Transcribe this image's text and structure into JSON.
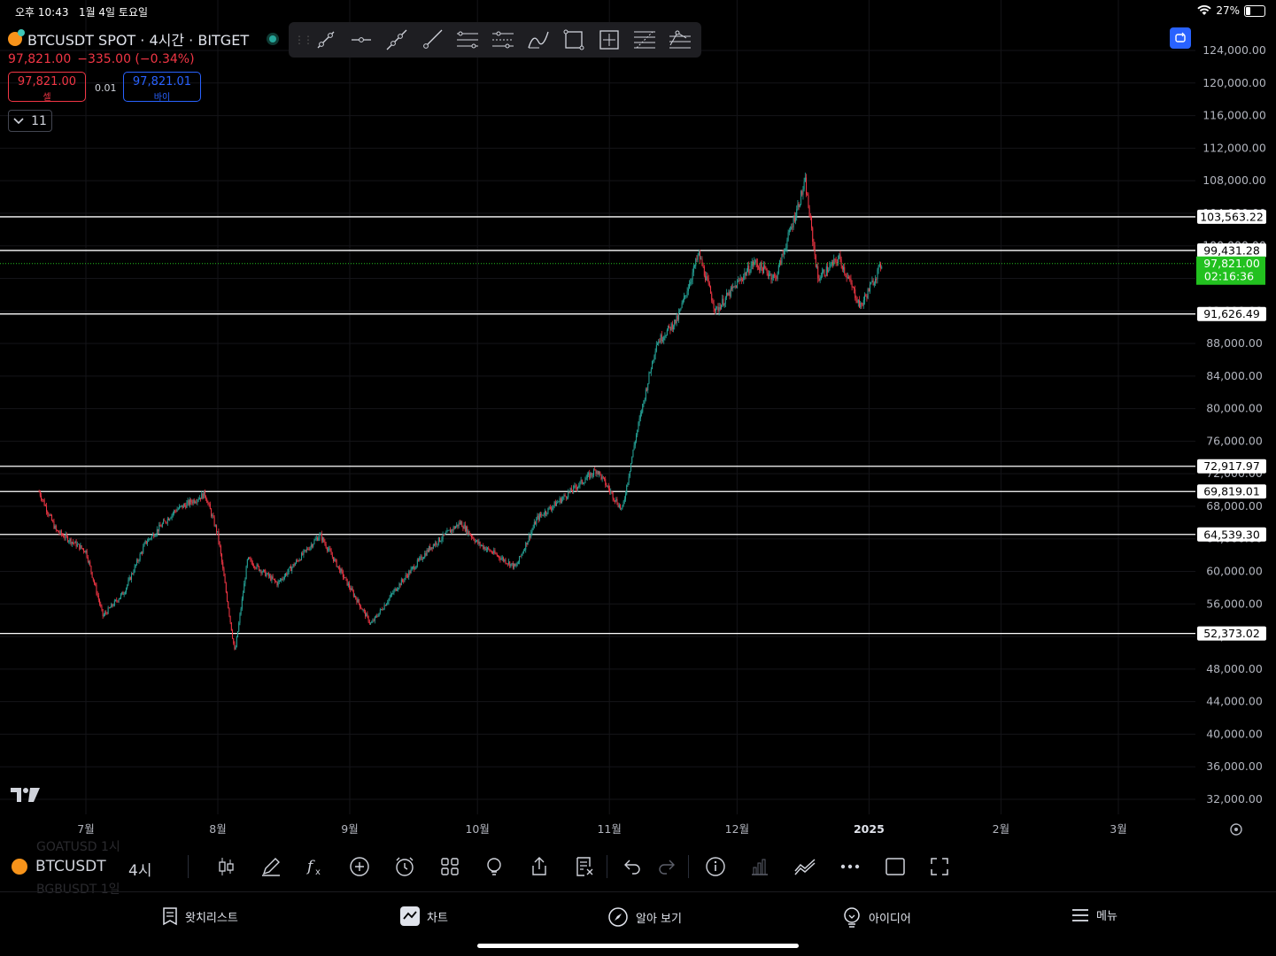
{
  "status_bar": {
    "time": "오후 10:43",
    "date": "1월 4일 토요일",
    "battery": "27%",
    "battery_level": 0.27
  },
  "header": {
    "symbol_title": "BTCUSDT SPOT · 4시간 · BITGET",
    "last_price": "97,821.00",
    "change": "−335.00 (−0.34%)",
    "sell_price": "97,821.00",
    "sell_label": "셀",
    "buy_price": "97,821.01",
    "buy_label": "바이",
    "spread": "0.01",
    "collapse_count": "11"
  },
  "drawing_tools": [
    "trend-line-icon",
    "horizontal-ray-icon",
    "extended-line-icon",
    "ray-icon",
    "parallel-channel-icon",
    "regression-channel-icon",
    "path-icon",
    "rectangle-icon",
    "price-range-icon",
    "fib-retracement-icon",
    "fib-extension-icon"
  ],
  "colors": {
    "up": "#26a69a",
    "down": "#f23645",
    "accent": "#2962ff",
    "last_price_bg": "#22c11f"
  },
  "chart_data": {
    "type": "candlestick",
    "symbol": "BTCUSDT",
    "timeframe": "4시간",
    "x_tick_labels": [
      "7월",
      "8월",
      "9월",
      "10월",
      "11월",
      "12월",
      "2025",
      "2월",
      "3월"
    ],
    "y_tick_labels": [
      "124,000.00",
      "120,000.00",
      "116,000.00",
      "112,000.00",
      "108,000.00",
      "104,000.00",
      "100,000.00",
      "96,000.00",
      "92,000.00",
      "88,000.00",
      "84,000.00",
      "80,000.00",
      "76,000.00",
      "72,000.00",
      "68,000.00",
      "64,000.00",
      "60,000.00",
      "56,000.00",
      "52,000.00",
      "48,000.00",
      "44,000.00",
      "40,000.00",
      "36,000.00",
      "32,000.00"
    ],
    "ylim": [
      30000,
      126000
    ],
    "horizontal_lines": [
      103563.22,
      99431.28,
      91626.49,
      72917.97,
      69819.01,
      64539.3,
      52373.02
    ],
    "horizontal_line_labels": [
      "103,563.22",
      "99,431.28",
      "91,626.49",
      "72,917.97",
      "69,819.01",
      "64,539.30",
      "52,373.02"
    ],
    "last_price": 97821.0,
    "last_price_label": "97,821.00",
    "countdown": "02:16:36",
    "price_path_approx": [
      [
        "2024-06-20",
        69800
      ],
      [
        "2024-06-24",
        65000
      ],
      [
        "2024-07-01",
        62500
      ],
      [
        "2024-07-05",
        54500
      ],
      [
        "2024-07-10",
        57500
      ],
      [
        "2024-07-15",
        63500
      ],
      [
        "2024-07-22",
        67500
      ],
      [
        "2024-07-29",
        69500
      ],
      [
        "2024-08-01",
        64500
      ],
      [
        "2024-08-05",
        50000
      ],
      [
        "2024-08-08",
        61500
      ],
      [
        "2024-08-15",
        58500
      ],
      [
        "2024-08-25",
        64500
      ],
      [
        "2024-09-01",
        58000
      ],
      [
        "2024-09-06",
        53500
      ],
      [
        "2024-09-12",
        58000
      ],
      [
        "2024-09-20",
        63000
      ],
      [
        "2024-09-27",
        66000
      ],
      [
        "2024-10-01",
        63500
      ],
      [
        "2024-10-10",
        60500
      ],
      [
        "2024-10-15",
        66500
      ],
      [
        "2024-10-21",
        69000
      ],
      [
        "2024-10-29",
        72500
      ],
      [
        "2024-11-04",
        67500
      ],
      [
        "2024-11-07",
        76000
      ],
      [
        "2024-11-12",
        88000
      ],
      [
        "2024-11-17",
        91000
      ],
      [
        "2024-11-22",
        99000
      ],
      [
        "2024-11-26",
        92000
      ],
      [
        "2024-12-05",
        98000
      ],
      [
        "2024-12-10",
        96000
      ],
      [
        "2024-12-17",
        107800
      ],
      [
        "2024-12-20",
        96000
      ],
      [
        "2024-12-25",
        98500
      ],
      [
        "2024-12-30",
        92500
      ],
      [
        "2025-01-04",
        97821
      ]
    ]
  },
  "bottom_toolbar": {
    "symbol": "BTCUSDT",
    "timeframe": "4시",
    "ghost_above": "GOATUSD  1시",
    "ghost_below": "BGBUSDT  1일"
  },
  "tabs": [
    {
      "label": "왓치리스트",
      "icon": "watchlist-icon"
    },
    {
      "label": "차트",
      "icon": "chart-icon"
    },
    {
      "label": "알아 보기",
      "icon": "compass-icon"
    },
    {
      "label": "아이디어",
      "icon": "lightbulb-icon"
    },
    {
      "label": "메뉴",
      "icon": "menu-icon"
    }
  ]
}
